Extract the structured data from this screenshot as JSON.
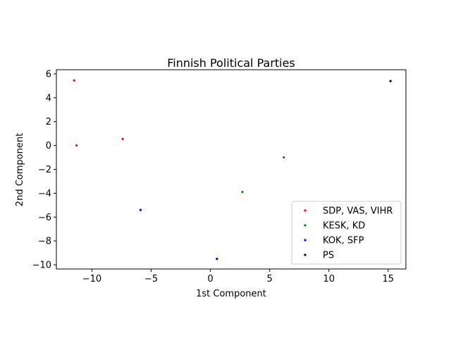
{
  "chart_data": {
    "type": "scatter",
    "title": "Finnish Political Parties",
    "xlabel": "1st Component",
    "ylabel": "2nd Component",
    "xlim": [
      -13.0,
      16.5
    ],
    "ylim": [
      -10.35,
      6.35
    ],
    "xticks": [
      -10,
      -5,
      0,
      5,
      10,
      15
    ],
    "xtick_labels": [
      "−10",
      "−5",
      "0",
      "5",
      "10",
      "15"
    ],
    "yticks": [
      -10,
      -8,
      -6,
      -4,
      -2,
      0,
      2,
      4,
      6
    ],
    "ytick_labels": [
      "−10",
      "−8",
      "−6",
      "−4",
      "−2",
      "0",
      "2",
      "4",
      "6"
    ],
    "grid": false,
    "legend_position": "lower-right",
    "series": [
      {
        "name": "SDP, VAS, VIHR",
        "color": "#ff0000",
        "points": [
          [
            -11.5,
            5.45
          ],
          [
            -11.3,
            0.0
          ],
          [
            -7.4,
            0.55
          ]
        ]
      },
      {
        "name": "KESK, KD",
        "color": "#008000",
        "points": [
          [
            2.7,
            -3.9
          ],
          [
            6.2,
            -1.0
          ]
        ]
      },
      {
        "name": "KOK, SFP",
        "color": "#0000ff",
        "points": [
          [
            -5.9,
            -5.4
          ],
          [
            0.55,
            -9.5
          ]
        ]
      },
      {
        "name": "PS",
        "color": "#000000",
        "points": [
          [
            15.2,
            5.4
          ]
        ]
      }
    ]
  }
}
